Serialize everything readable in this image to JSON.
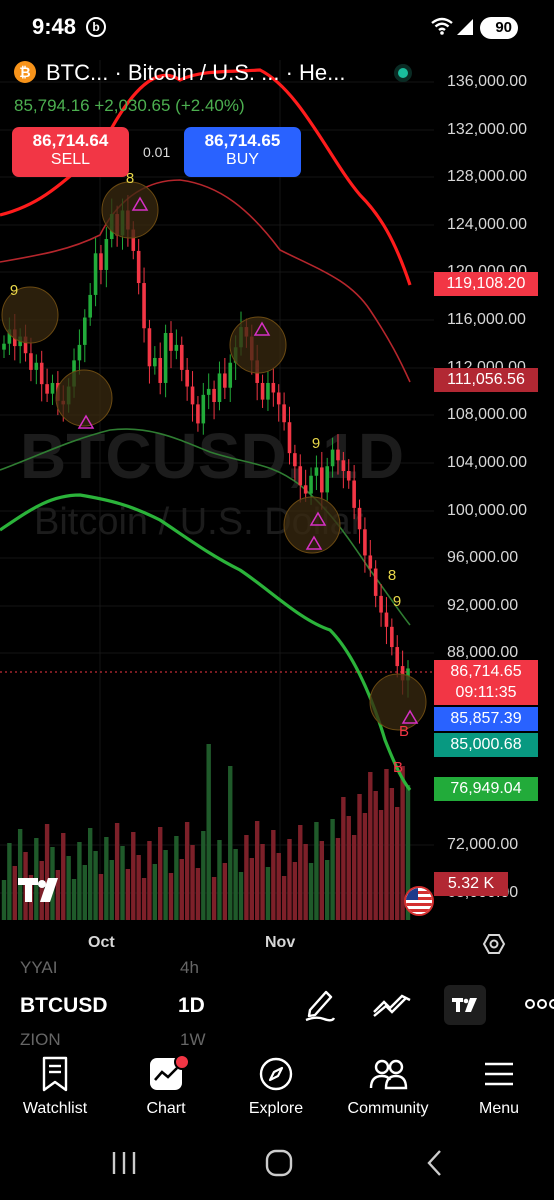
{
  "status_bar": {
    "time": "9:48",
    "battery": "90",
    "badge": "b"
  },
  "header": {
    "symbol_title": "BTC... · Bitcoin / U.S. ... · He...",
    "price_change": "85,794.16  +2,030.65 (+2.40%)",
    "sell_price": "86,714.64",
    "sell_label": "SELL",
    "buy_price": "86,714.65",
    "buy_label": "BUY",
    "spread": "0.01"
  },
  "chart_data": {
    "type": "candlestick",
    "symbol": "BTCUSD",
    "interval": "1D",
    "watermark_line1": "BTCUSD, 1D",
    "watermark_line2": "Bitcoin / U.S. Dollar",
    "y_ticks": [
      "136,000.00",
      "132,000.00",
      "128,000.00",
      "124,000.00",
      "120,000.00",
      "116,000.00",
      "112,000.00",
      "108,000.00",
      "104,000.00",
      "100,000.00",
      "96,000.00",
      "92,000.00",
      "88,000.00",
      "72,000.00",
      "68,000.00"
    ],
    "x_ticks": [
      "Oct",
      "Nov"
    ],
    "price_tags": [
      {
        "value": "119,108.20",
        "color": "#f23645"
      },
      {
        "value": "111,056.56",
        "color": "#b22833"
      },
      {
        "value": "86,714.65",
        "color": "#f23645"
      },
      {
        "value": "09:11:35",
        "color": "#f23645"
      },
      {
        "value": "85,857.39",
        "color": "#2962ff"
      },
      {
        "value": "85,000.68",
        "color": "#089981"
      },
      {
        "value": "76,949.04",
        "color": "#22ab3a"
      }
    ],
    "volume_label": "5.32 K",
    "signal_labels": [
      "9",
      "8",
      "9",
      "8",
      "9",
      "B",
      "B"
    ],
    "candles_close": [
      114000,
      115200,
      113800,
      114600,
      113200,
      111800,
      112400,
      110600,
      109800,
      110700,
      109200,
      108900,
      110400,
      112600,
      113900,
      116200,
      118100,
      121600,
      120200,
      122800,
      124900,
      123100,
      125200,
      123600,
      121800,
      119100,
      115300,
      112100,
      112800,
      110700,
      114900,
      113400,
      113900,
      111800,
      110400,
      108900,
      107300,
      109700,
      110200,
      109100,
      111500,
      110300,
      112400,
      113700,
      115400,
      114600,
      112600,
      110700,
      109300,
      110700,
      109900,
      108900,
      107400,
      104800,
      103700,
      102100,
      101400,
      102900,
      103600,
      101500,
      103700,
      105100,
      104200,
      103300,
      102500,
      100200,
      98400,
      96200,
      95100,
      92800,
      91400,
      90200,
      88500,
      86900,
      85700,
      86700
    ]
  },
  "picker": {
    "ghost_symbol_top": "YYAI",
    "ghost_interval_top": "4h",
    "symbol": "BTCUSD",
    "interval": "1D",
    "ghost_symbol_bottom": "ZION",
    "ghost_interval_bottom": "1W"
  },
  "nav": {
    "watchlist": "Watchlist",
    "chart": "Chart",
    "explore": "Explore",
    "community": "Community",
    "menu": "Menu"
  },
  "colors": {
    "up": "#22ab3a",
    "down": "#f23645",
    "upper_band": "#ff1c1c",
    "lower_band": "#2bb33a"
  }
}
